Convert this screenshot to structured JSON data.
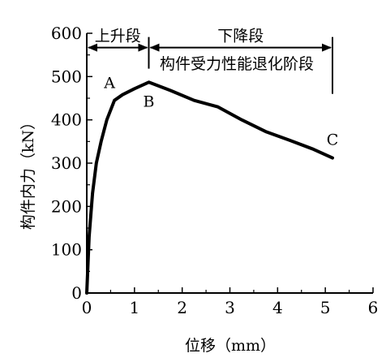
{
  "chart_data": {
    "type": "line",
    "title": "",
    "xlabel": "位移（mm）",
    "ylabel": "构件内力（kN）",
    "xlim": [
      0,
      6
    ],
    "ylim": [
      0,
      600
    ],
    "xticks": [
      0,
      1,
      2,
      3,
      4,
      5,
      6
    ],
    "yticks": [
      0,
      100,
      200,
      300,
      400,
      500,
      600
    ],
    "xtick_labels": [
      "0",
      "1",
      "2",
      "3",
      "4",
      "5",
      "6"
    ],
    "ytick_labels": [
      "0",
      "100",
      "200",
      "300",
      "400",
      "500",
      "600"
    ],
    "grid": false,
    "series": [
      {
        "x": [
          0,
          0.05,
          0.12,
          0.2,
          0.3,
          0.42,
          0.58,
          0.75,
          1.0,
          1.3,
          1.75,
          2.25,
          2.75,
          3.25,
          3.75,
          4.25,
          4.75,
          5.15
        ],
        "y": [
          0,
          130,
          230,
          300,
          350,
          400,
          445,
          458,
          472,
          487,
          468,
          445,
          430,
          400,
          373,
          353,
          332,
          312
        ]
      }
    ],
    "points": [
      {
        "label": "A",
        "x": 0.58,
        "y": 445
      },
      {
        "label": "B",
        "x": 1.3,
        "y": 487
      },
      {
        "label": "C",
        "x": 5.15,
        "y": 312
      }
    ],
    "stages": [
      {
        "label": "上升段",
        "x_start": 0,
        "x_end": 1.3
      },
      {
        "label": "下降段",
        "x_start": 1.3,
        "x_end": 5.15
      }
    ],
    "stage_bracket_y": 567,
    "stage_note": "构件受力性能退化阶段"
  }
}
